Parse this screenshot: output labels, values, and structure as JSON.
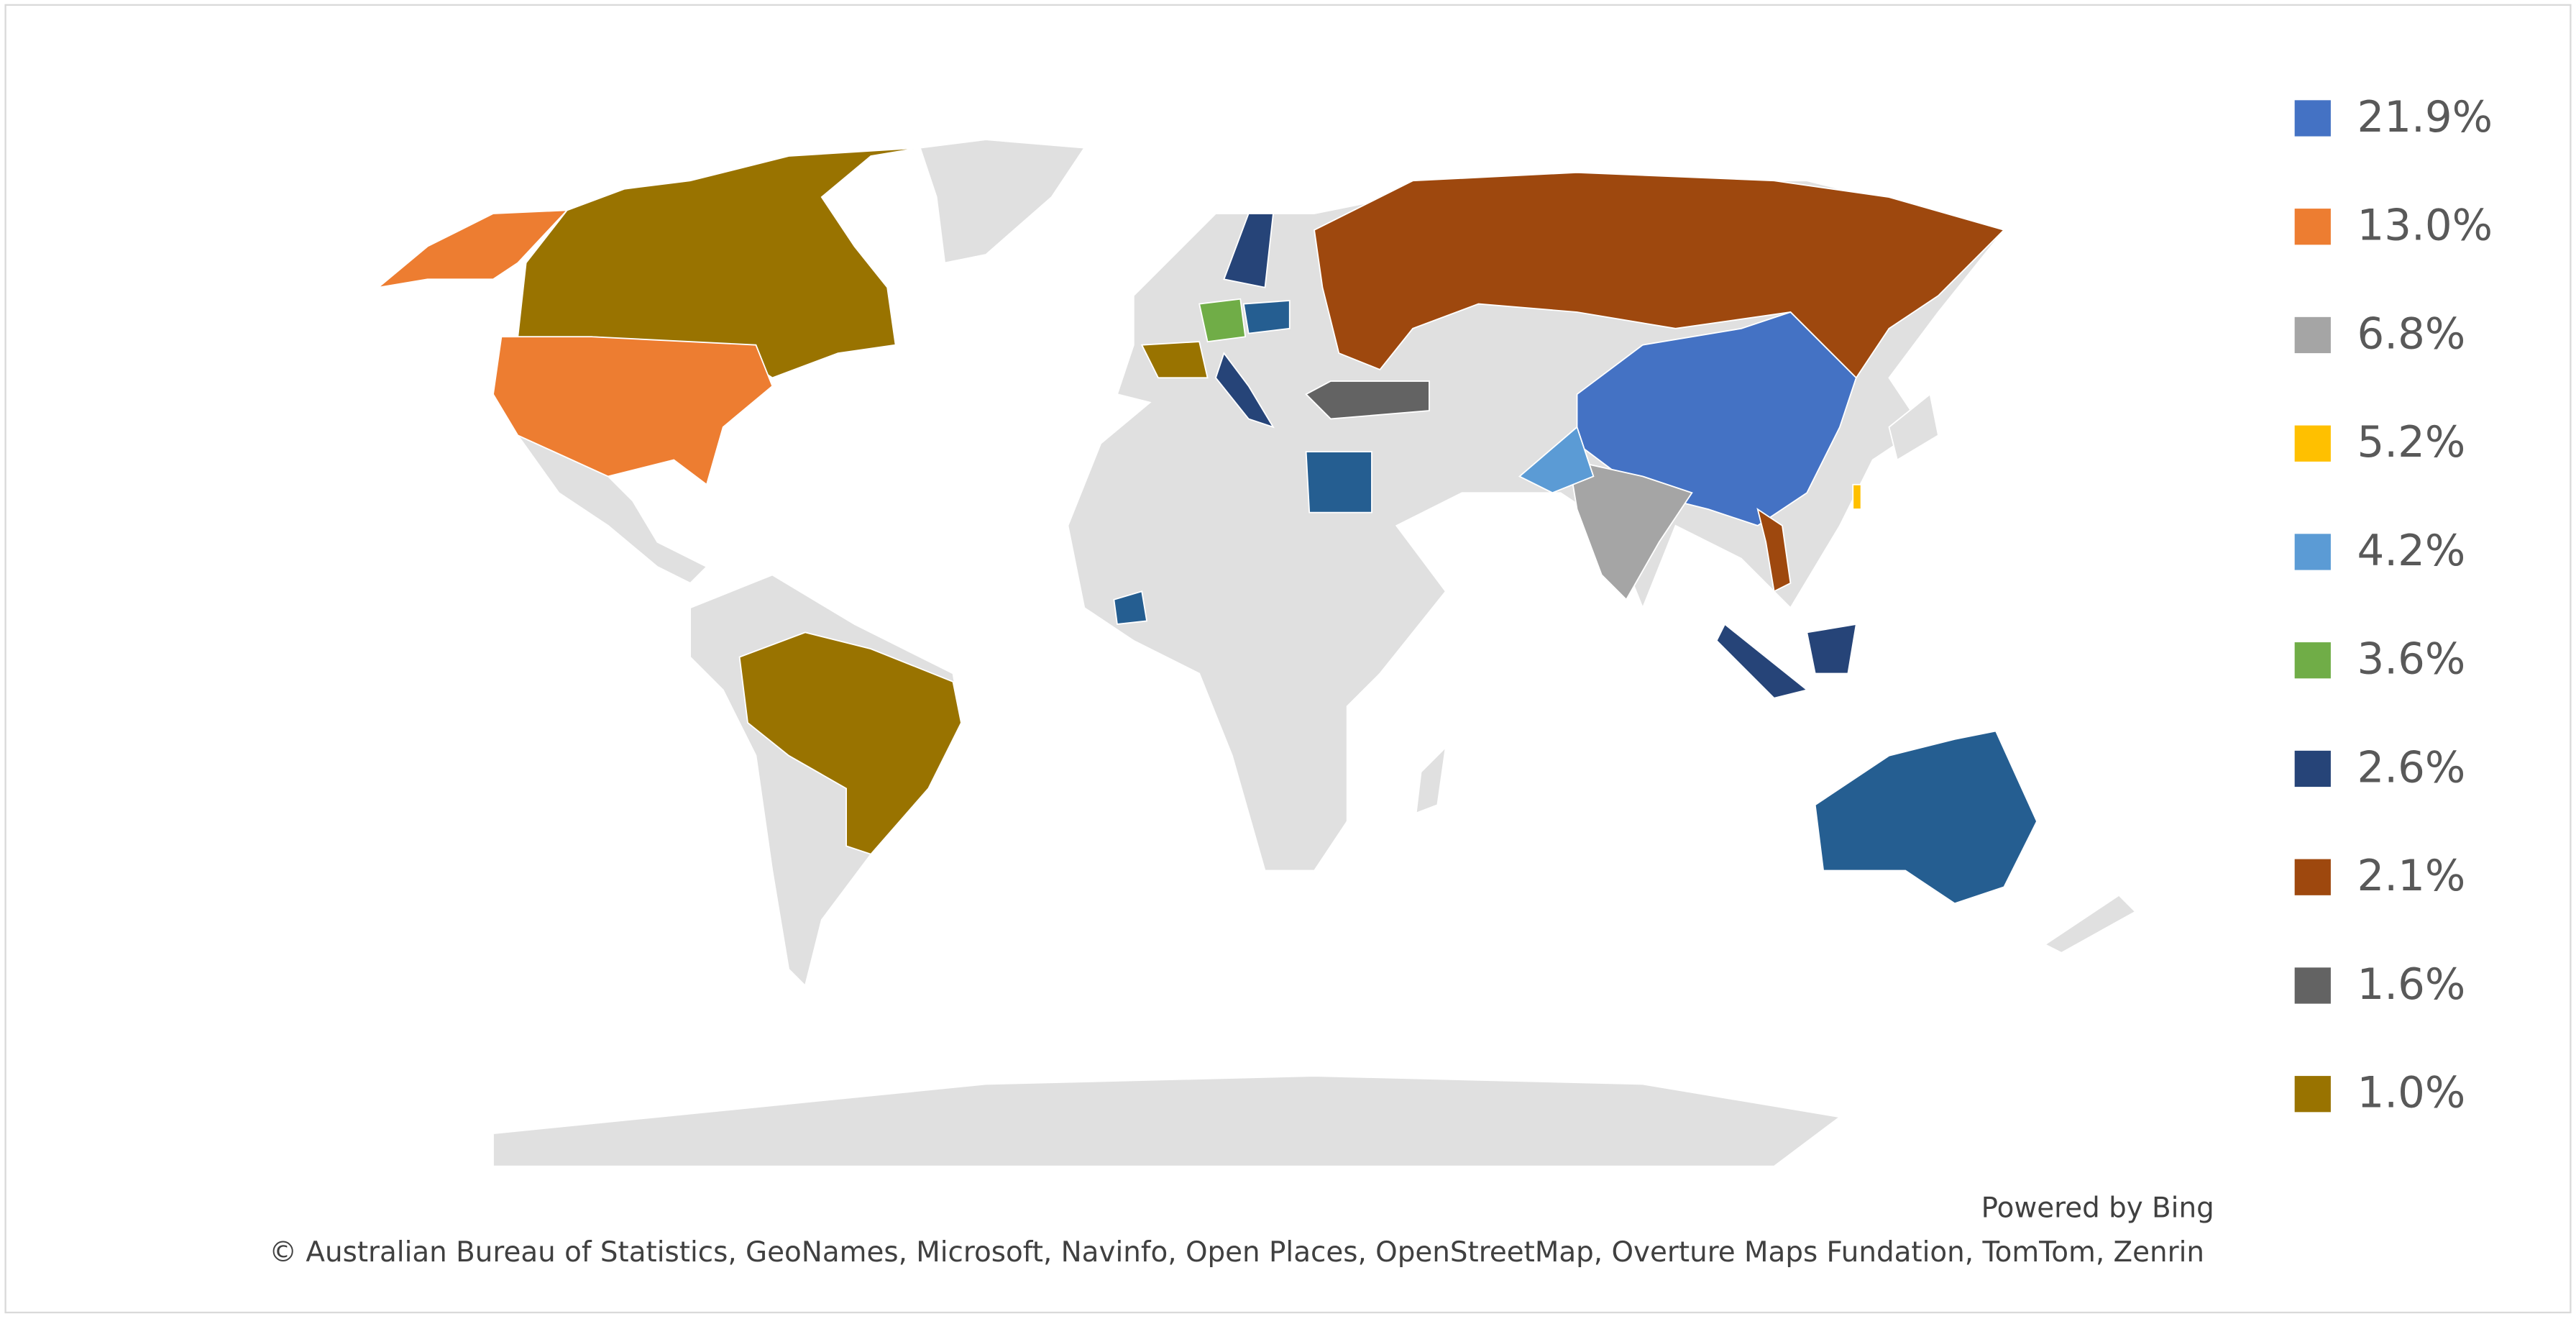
{
  "chart_data": {
    "type": "map",
    "series": [
      {
        "name": "21.9%",
        "color": "#4472c4"
      },
      {
        "name": "13.0%",
        "color": "#ed7d31"
      },
      {
        "name": "6.8%",
        "color": "#a5a5a5"
      },
      {
        "name": "5.2%",
        "color": "#ffc000"
      },
      {
        "name": "4.2%",
        "color": "#5b9bd5"
      },
      {
        "name": "3.6%",
        "color": "#70ad47"
      },
      {
        "name": "2.6%",
        "color": "#264478"
      },
      {
        "name": "2.1%",
        "color": "#9e480e"
      },
      {
        "name": "1.6%",
        "color": "#636363"
      },
      {
        "name": "1.0%",
        "color": "#997300"
      }
    ],
    "credits": [
      "Powered by Bing",
      "© Australian Bureau of Statistics, GeoNames, Microsoft, Navinfo, Open Places, OpenStreetMap, Overture Maps Fundation, TomTom, Zenrin"
    ]
  }
}
